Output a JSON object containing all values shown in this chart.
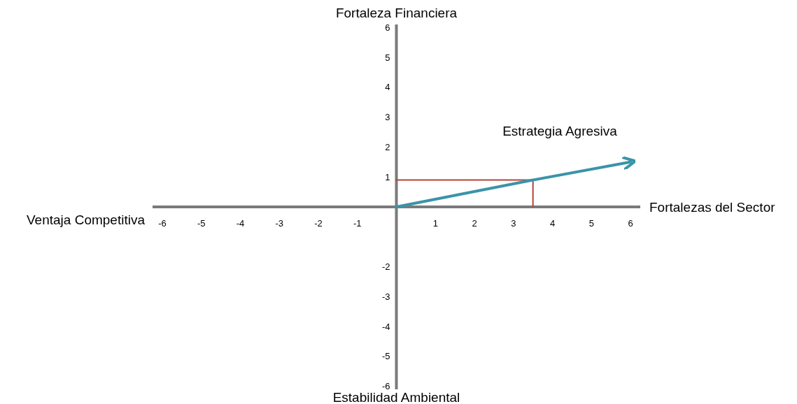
{
  "chart_data": {
    "type": "line",
    "xlabel": "Fortalezas del Sector",
    "ylabel": "Fortaleza Financiera",
    "annotations": [
      "Ventaja Competitiva",
      "Estabilidad Ambiental",
      "Estrategia Agresiva"
    ],
    "xlim": [
      -6.25,
      6.25
    ],
    "ylim": [
      -6.1,
      6.1
    ],
    "xticks": [
      -6,
      -5,
      -4,
      -3,
      -2,
      -1,
      1,
      2,
      3,
      4,
      5,
      6
    ],
    "yticks": [
      -6,
      -5,
      -4,
      -3,
      -2,
      1,
      2,
      3,
      4,
      5,
      6
    ],
    "grid": false,
    "marker": "none",
    "series": [
      {
        "color": "#b5443a",
        "x": [
          0,
          3.5,
          3.5
        ],
        "values": [
          0.9,
          0.9,
          0
        ]
      },
      {
        "color": "#3a94a8",
        "x": [
          0,
          3.5,
          6
        ],
        "values": [
          0,
          0.9,
          1.5
        ]
      }
    ]
  }
}
